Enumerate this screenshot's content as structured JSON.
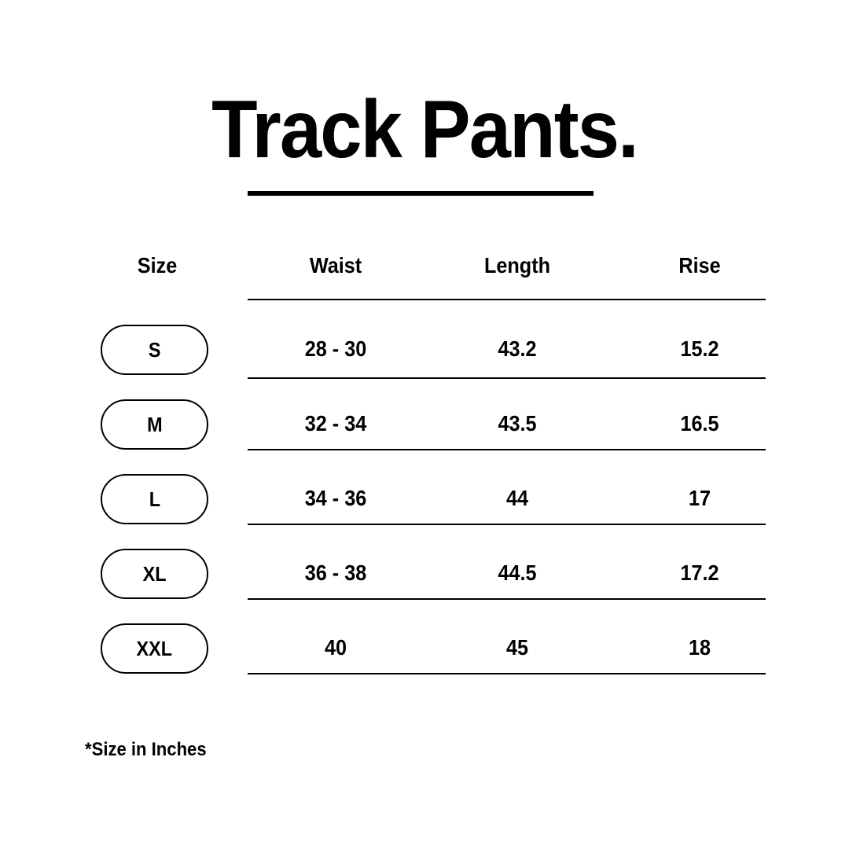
{
  "title": "Track Pants.",
  "table": {
    "headers": [
      "Size",
      "Waist",
      "Length",
      "Rise"
    ],
    "rows": [
      {
        "size": "S",
        "waist": "28 - 30",
        "length": "43.2",
        "rise": "15.2"
      },
      {
        "size": "M",
        "waist": "32 - 34",
        "length": "43.5",
        "rise": "16.5"
      },
      {
        "size": "L",
        "waist": "34 - 36",
        "length": "44",
        "rise": "17"
      },
      {
        "size": "XL",
        "waist": "36 - 38",
        "length": "44.5",
        "rise": "17.2"
      },
      {
        "size": "XXL",
        "waist": "40",
        "length": "45",
        "rise": "18"
      }
    ]
  },
  "footnote": "*Size in Inches"
}
